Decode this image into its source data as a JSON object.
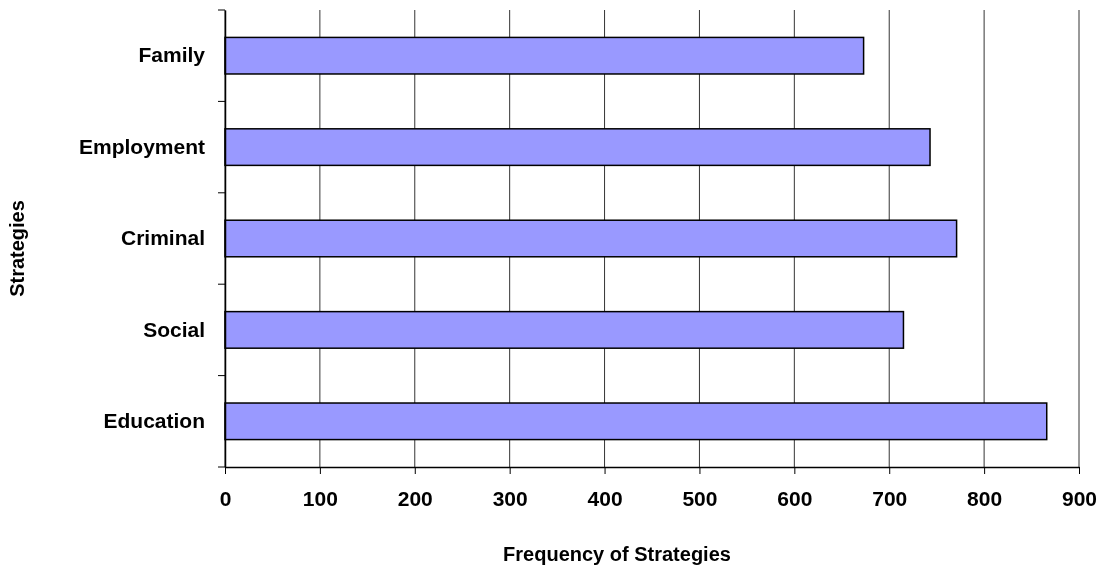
{
  "chart_data": {
    "type": "bar",
    "orientation": "horizontal",
    "xlabel": "Frequency of Strategies",
    "ylabel": "Strategies",
    "categories": [
      "Family",
      "Employment",
      "Criminal",
      "Social",
      "Education"
    ],
    "values": [
      673,
      743,
      771,
      715,
      866
    ],
    "color": "#9999ff",
    "xlim": [
      0,
      900
    ],
    "xticks": [
      0,
      100,
      200,
      300,
      400,
      500,
      600,
      700,
      800,
      900
    ],
    "grid": "x"
  }
}
